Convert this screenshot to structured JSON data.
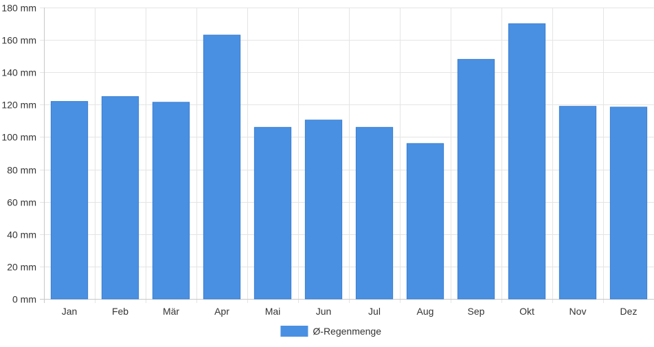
{
  "chart_data": {
    "type": "bar",
    "categories": [
      "Jan",
      "Feb",
      "Mär",
      "Apr",
      "Mai",
      "Jun",
      "Jul",
      "Aug",
      "Sep",
      "Okt",
      "Nov",
      "Dez"
    ],
    "series": [
      {
        "name": "Ø-Regenmenge",
        "values": [
          122,
          125,
          121.5,
          163,
          106,
          110.5,
          106,
          96,
          148,
          170,
          119,
          118.5
        ],
        "color": "#4a90e2"
      }
    ],
    "y_ticks": [
      "0 mm",
      "20 mm",
      "40 mm",
      "60 mm",
      "80 mm",
      "100 mm",
      "120 mm",
      "140 mm",
      "160 mm",
      "180 mm"
    ],
    "ylim": [
      0,
      180
    ],
    "y_step": 20,
    "grid": true,
    "legend_position": "bottom-center"
  }
}
